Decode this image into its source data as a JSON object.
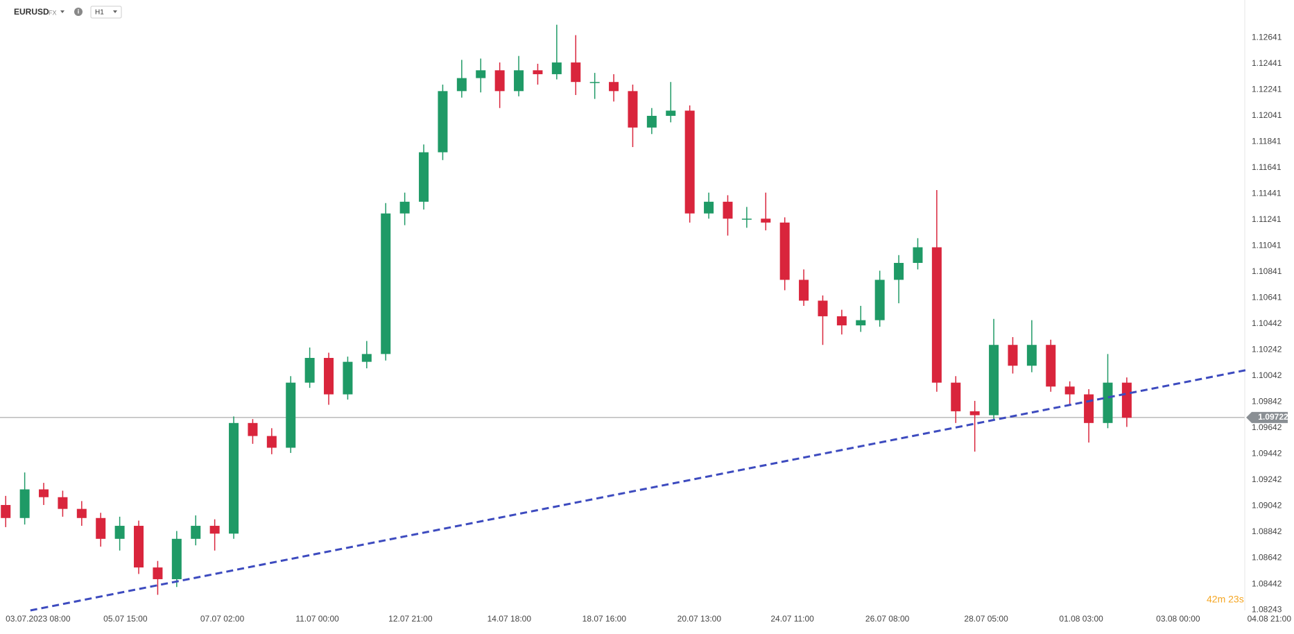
{
  "header": {
    "symbol": "EURUSD",
    "market": "FX",
    "interval": "H1"
  },
  "chart_data": {
    "type": "candlestick",
    "up_color": "#1f9a66",
    "down_color": "#d9253c",
    "open": [
      1.0905,
      1.0895,
      1.0917,
      1.0911,
      1.0902,
      1.0895,
      1.0879,
      1.0889,
      1.0857,
      1.0848,
      1.0879,
      1.0889,
      1.0883,
      1.0968,
      1.0958,
      1.0949,
      1.0999,
      1.1018,
      1.099,
      1.1015,
      1.1021,
      1.1129,
      1.1138,
      1.1176,
      1.1223,
      1.1233,
      1.1239,
      1.1223,
      1.1239,
      1.1236,
      1.1245,
      1.123,
      1.123,
      1.1223,
      1.1195,
      1.1204,
      1.1208,
      1.1129,
      1.1138,
      1.1125,
      1.1125,
      1.1122,
      1.1078,
      1.1062,
      1.105,
      1.1043,
      1.1047,
      1.1078,
      1.1091,
      1.1103,
      1.0999,
      1.0977,
      1.0974,
      1.1028,
      1.1012,
      1.1028,
      1.0996,
      1.099,
      1.0968,
      1.0999
    ],
    "high": [
      1.0912,
      1.093,
      1.0922,
      1.0916,
      1.0908,
      1.0899,
      1.0896,
      1.0893,
      1.0862,
      1.0885,
      1.0897,
      1.0894,
      1.0973,
      1.0971,
      1.0964,
      1.1004,
      1.1026,
      1.1022,
      1.1019,
      1.1031,
      1.1137,
      1.1145,
      1.1182,
      1.1228,
      1.1247,
      1.1248,
      1.1245,
      1.125,
      1.1244,
      1.1274,
      1.1266,
      1.1237,
      1.1236,
      1.1228,
      1.121,
      1.123,
      1.1212,
      1.1145,
      1.1143,
      1.1134,
      1.1145,
      1.1126,
      1.1086,
      1.1066,
      1.1055,
      1.1058,
      1.1085,
      1.1097,
      1.111,
      1.1147,
      1.1004,
      1.0985,
      1.1048,
      1.1034,
      1.1047,
      1.1032,
      1.1,
      1.0994,
      1.1021,
      1.1003
    ],
    "low": [
      1.0888,
      1.089,
      1.0905,
      1.0896,
      1.0889,
      1.0873,
      1.087,
      1.0852,
      1.0836,
      1.0842,
      1.0874,
      1.087,
      1.0879,
      1.0952,
      1.0944,
      1.0945,
      1.0995,
      1.0982,
      1.0986,
      1.101,
      1.1016,
      1.112,
      1.1132,
      1.117,
      1.1218,
      1.1222,
      1.121,
      1.1219,
      1.1228,
      1.1232,
      1.122,
      1.1217,
      1.1215,
      1.118,
      1.119,
      1.1199,
      1.1122,
      1.1125,
      1.1112,
      1.1118,
      1.1116,
      1.107,
      1.1058,
      1.1028,
      1.1036,
      1.1038,
      1.1042,
      1.106,
      1.1086,
      1.0992,
      1.0968,
      1.0946,
      1.097,
      1.1006,
      1.1007,
      1.0992,
      1.0982,
      1.0953,
      1.0964,
      1.0965
    ],
    "close": [
      1.0895,
      1.0917,
      1.0911,
      1.0902,
      1.0895,
      1.0879,
      1.0889,
      1.0857,
      1.0848,
      1.0879,
      1.0889,
      1.0883,
      1.0968,
      1.0958,
      1.0949,
      1.0999,
      1.1018,
      1.099,
      1.1015,
      1.1021,
      1.1129,
      1.1138,
      1.1176,
      1.1223,
      1.1233,
      1.1239,
      1.1223,
      1.1239,
      1.1236,
      1.1245,
      1.123,
      1.123,
      1.1223,
      1.1195,
      1.1204,
      1.1208,
      1.1129,
      1.1138,
      1.1125,
      1.1125,
      1.1122,
      1.1078,
      1.1062,
      1.105,
      1.1043,
      1.1047,
      1.1078,
      1.1091,
      1.1103,
      1.0999,
      1.0977,
      1.0974,
      1.1028,
      1.1012,
      1.1028,
      1.0996,
      1.099,
      1.0968,
      1.0999,
      1.0972
    ],
    "ylim": [
      1.0824,
      1.1293
    ],
    "yticks": [
      1.12641,
      1.12441,
      1.12241,
      1.12041,
      1.11841,
      1.11641,
      1.11441,
      1.11241,
      1.11041,
      1.10841,
      1.10641,
      1.10442,
      1.10242,
      1.10042,
      1.09842,
      1.09642,
      1.09442,
      1.09242,
      1.09042,
      1.08842,
      1.08642,
      1.08442,
      1.08243
    ],
    "xlim": [
      -0.3,
      67.8
    ],
    "xticks": [
      {
        "value": 1.7,
        "label": "03.07.2023 08:00"
      },
      {
        "value": 6.3,
        "label": "05.07 15:00"
      },
      {
        "value": 11.4,
        "label": "07.07 02:00"
      },
      {
        "value": 16.4,
        "label": "11.07 00:00"
      },
      {
        "value": 21.3,
        "label": "12.07 21:00"
      },
      {
        "value": 26.5,
        "label": "14.07 18:00"
      },
      {
        "value": 31.5,
        "label": "18.07 16:00"
      },
      {
        "value": 36.5,
        "label": "20.07 13:00"
      },
      {
        "value": 41.4,
        "label": "24.07 11:00"
      },
      {
        "value": 46.4,
        "label": "26.07 08:00"
      },
      {
        "value": 51.6,
        "label": "28.07 05:00"
      },
      {
        "value": 56.6,
        "label": "01.08 03:00"
      },
      {
        "value": 61.7,
        "label": "03.08 00:00"
      },
      {
        "value": 66.7,
        "label": "04.08 21:00"
      }
    ],
    "grid": false,
    "last_price": 1.09722,
    "trend_line": {
      "x": [
        1.3,
        65.4
      ],
      "y": [
        1.0824,
        1.1009
      ],
      "color": "#3d4bbf"
    },
    "countdown": "42m 23s"
  }
}
